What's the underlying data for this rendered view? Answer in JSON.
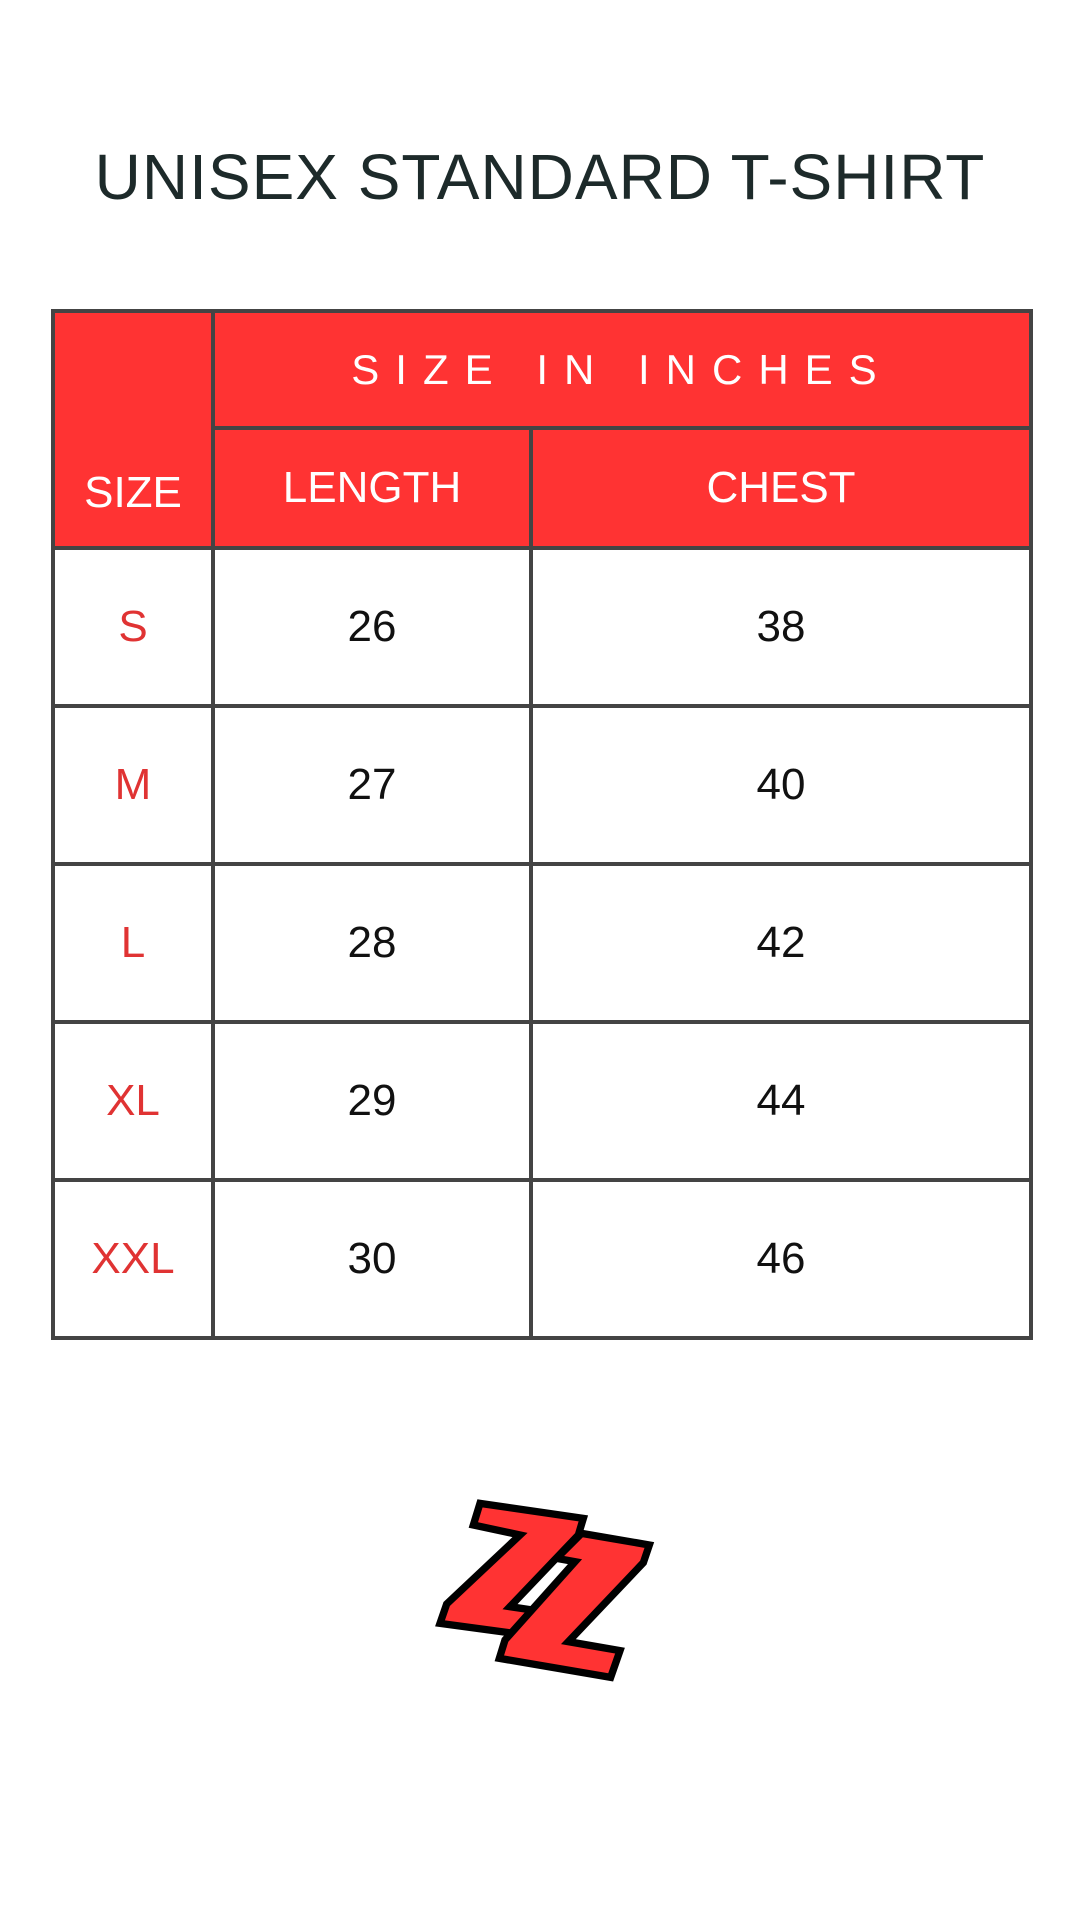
{
  "title": "UNISEX STANDARD T-SHIRT",
  "table": {
    "size_header": "SIZE",
    "group_header": "SIZE IN INCHES",
    "columns": [
      "LENGTH",
      "CHEST"
    ],
    "rows": [
      {
        "size": "S",
        "length": "26",
        "chest": "38"
      },
      {
        "size": "M",
        "length": "27",
        "chest": "40"
      },
      {
        "size": "L",
        "length": "28",
        "chest": "42"
      },
      {
        "size": "XL",
        "length": "29",
        "chest": "44"
      },
      {
        "size": "XXL",
        "length": "30",
        "chest": "46"
      }
    ]
  },
  "colors": {
    "header_bg": "#ff3333",
    "size_text": "#e03333",
    "border": "#444444"
  },
  "logo": {
    "icon": "zz-logo"
  }
}
